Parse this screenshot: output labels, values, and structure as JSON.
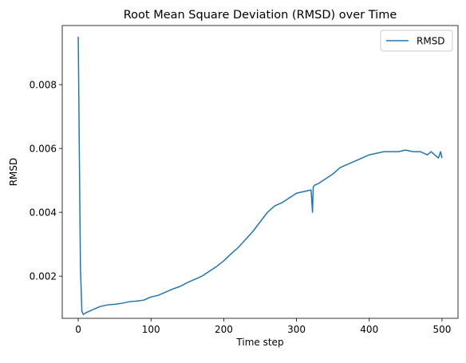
{
  "chart_data": {
    "type": "line",
    "title": "Root Mean Square Deviation (RMSD) over Time",
    "xlabel": "Time step",
    "ylabel": "RMSD",
    "xlim": [
      -22,
      522
    ],
    "ylim": [
      0.00068,
      0.00985
    ],
    "xticks": [
      0,
      100,
      200,
      300,
      400,
      500
    ],
    "xtick_labels": [
      "0",
      "100",
      "200",
      "300",
      "400",
      "500"
    ],
    "yticks": [
      0.002,
      0.004,
      0.006,
      0.008
    ],
    "ytick_labels": [
      "0.002",
      "0.004",
      "0.006",
      "0.008"
    ],
    "grid": false,
    "legend": "top-right",
    "series": [
      {
        "name": "RMSD",
        "color": "#1f77b4",
        "x": [
          0,
          3,
          5,
          7,
          10,
          15,
          20,
          25,
          30,
          40,
          50,
          60,
          70,
          80,
          90,
          100,
          110,
          120,
          130,
          140,
          150,
          160,
          170,
          180,
          190,
          200,
          210,
          220,
          230,
          240,
          250,
          260,
          270,
          280,
          290,
          300,
          310,
          320,
          322,
          323,
          325,
          330,
          340,
          350,
          360,
          370,
          380,
          390,
          400,
          410,
          420,
          430,
          440,
          450,
          460,
          470,
          480,
          485,
          490,
          495,
          498,
          500
        ],
        "y": [
          0.0095,
          0.0023,
          0.0009,
          0.0008,
          0.00085,
          0.0009,
          0.00095,
          0.001,
          0.00105,
          0.0011,
          0.00112,
          0.00115,
          0.0012,
          0.00122,
          0.00125,
          0.00135,
          0.0014,
          0.0015,
          0.0016,
          0.00168,
          0.0018,
          0.0019,
          0.002,
          0.00215,
          0.0023,
          0.00248,
          0.0027,
          0.0029,
          0.00315,
          0.0034,
          0.0037,
          0.004,
          0.0042,
          0.0043,
          0.00445,
          0.0046,
          0.00465,
          0.0047,
          0.004,
          0.0048,
          0.00485,
          0.0049,
          0.00505,
          0.0052,
          0.0054,
          0.0055,
          0.0056,
          0.0057,
          0.0058,
          0.00585,
          0.0059,
          0.0059,
          0.0059,
          0.00595,
          0.0059,
          0.0059,
          0.0058,
          0.0059,
          0.0058,
          0.0057,
          0.0059,
          0.0057
        ]
      }
    ]
  }
}
